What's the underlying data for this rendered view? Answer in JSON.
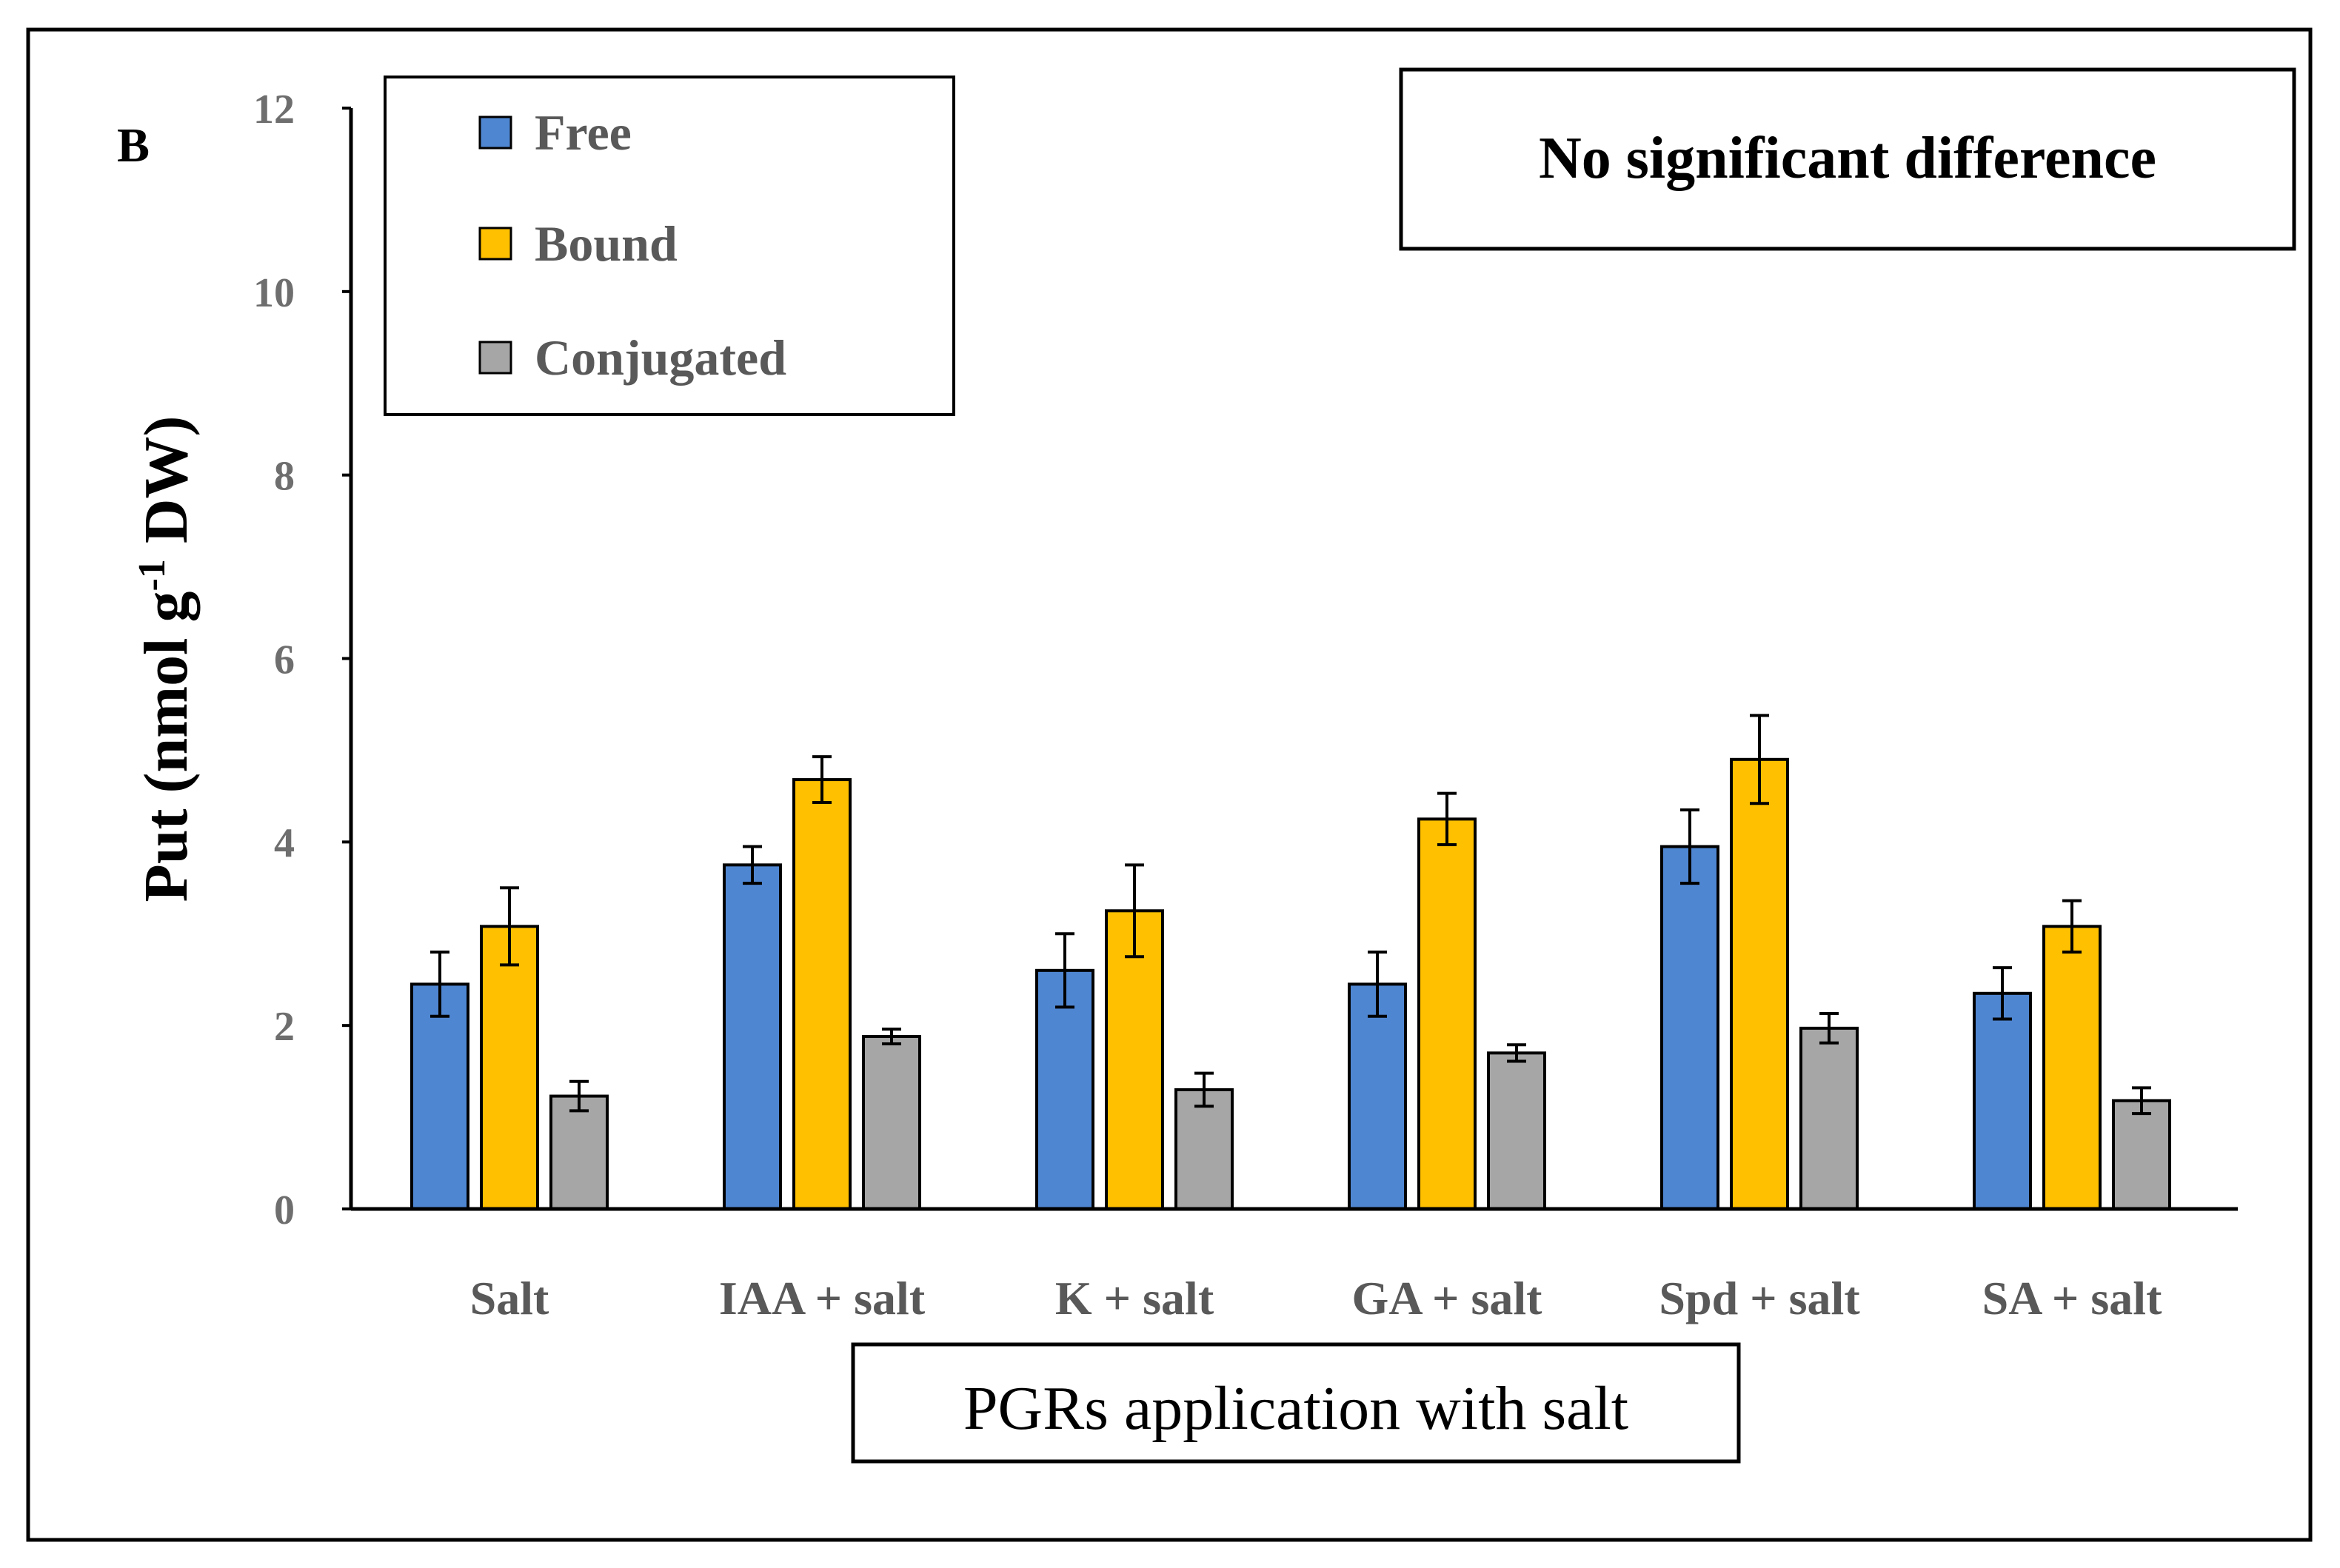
{
  "panel_label": "B",
  "note": "No significant difference",
  "colors": {
    "free": "#4f86d1",
    "bound": "#ffc000",
    "conjugated": "#a6a6a6"
  },
  "chart_data": {
    "type": "bar",
    "title": "",
    "xlabel": "PGRs application with salt",
    "ylabel": "Put (nmol g-1 DW)",
    "ylabel_parts": {
      "main": "Put (nmol g",
      "sup": "-1",
      "tail": " DW)"
    },
    "ylim": [
      0,
      12
    ],
    "yticks": [
      0,
      2,
      4,
      6,
      8,
      10,
      12
    ],
    "grid": false,
    "legend_position": "top-left",
    "categories": [
      "Salt",
      "IAA + salt",
      "K + salt",
      "GA + salt",
      "Spd + salt",
      "SA + salt"
    ],
    "series": [
      {
        "name": "Free",
        "values": [
          2.45,
          3.75,
          2.6,
          2.45,
          3.95,
          2.35
        ],
        "errors": [
          0.35,
          0.2,
          0.4,
          0.35,
          0.4,
          0.28
        ]
      },
      {
        "name": "Bound",
        "values": [
          3.08,
          4.68,
          3.25,
          4.25,
          4.9,
          3.08
        ],
        "errors": [
          0.42,
          0.25,
          0.5,
          0.28,
          0.48,
          0.28
        ]
      },
      {
        "name": "Conjugated",
        "values": [
          1.23,
          1.88,
          1.3,
          1.7,
          1.97,
          1.18
        ],
        "errors": [
          0.16,
          0.08,
          0.18,
          0.09,
          0.16,
          0.14
        ]
      }
    ]
  }
}
